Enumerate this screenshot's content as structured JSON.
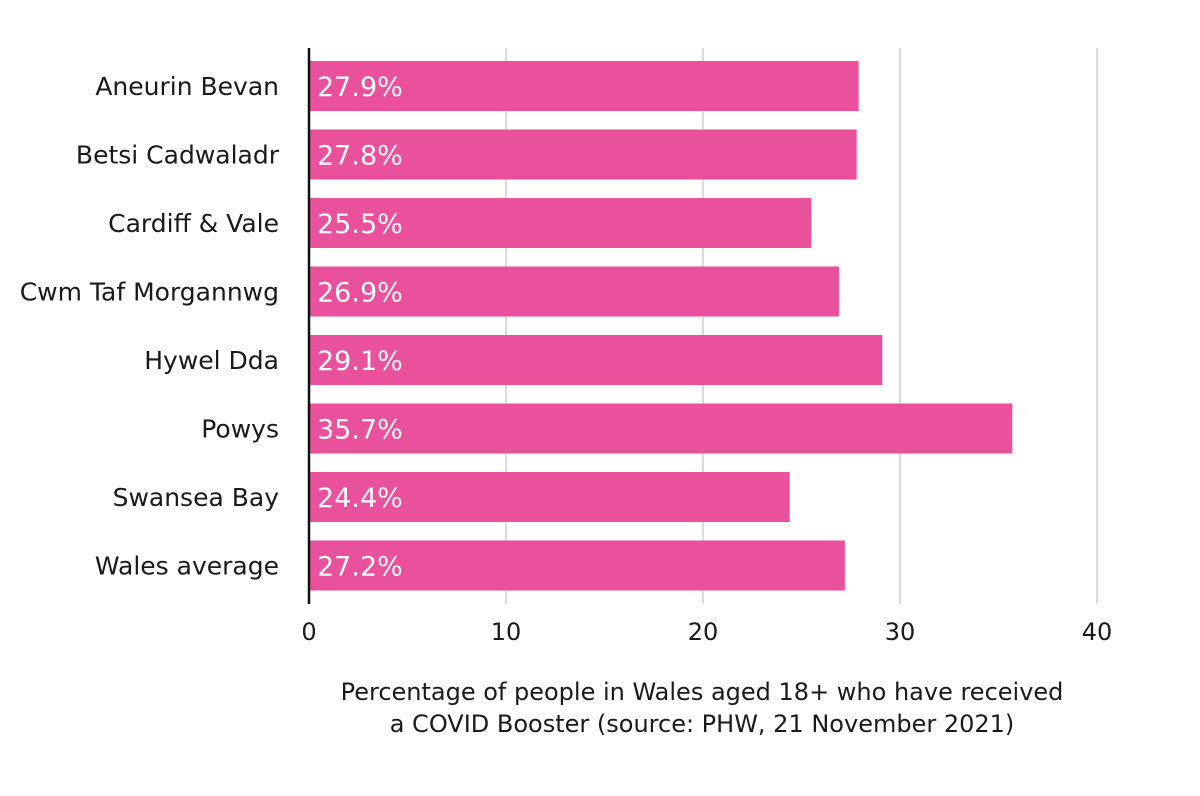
{
  "chart_data": {
    "type": "bar",
    "orientation": "horizontal",
    "categories": [
      "Aneurin Bevan",
      "Betsi Cadwaladr",
      "Cardiff & Vale",
      "Cwm Taf Morgannwg",
      "Hywel Dda",
      "Powys",
      "Swansea Bay",
      "Wales average"
    ],
    "values": [
      27.9,
      27.8,
      25.5,
      26.9,
      29.1,
      35.7,
      24.4,
      27.2
    ],
    "data_labels": [
      "27.9%",
      "27.8%",
      "25.5%",
      "26.9%",
      "29.1%",
      "35.7%",
      "24.4%",
      "27.2%"
    ],
    "xlim": [
      0,
      40
    ],
    "x_ticks": [
      0,
      10,
      20,
      30,
      40
    ],
    "xlabel_lines": [
      "Percentage of people in Wales aged 18+ who have received",
      "a COVID Booster (source: PHW, 21 November 2021)"
    ],
    "title": "",
    "ylabel": "",
    "grid": true,
    "legend": "none",
    "colors": {
      "bar": "#e9519c",
      "grid": "#cfcfcf",
      "axis": "#111111"
    }
  }
}
